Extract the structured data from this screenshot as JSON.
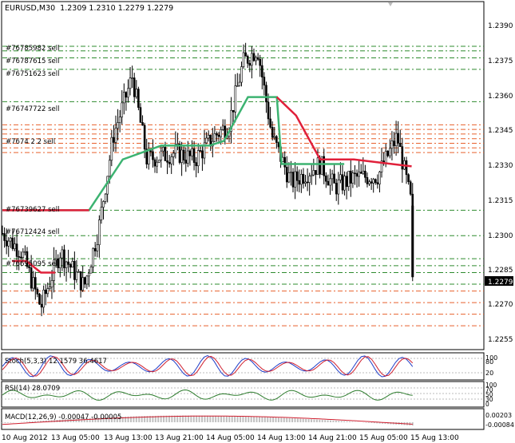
{
  "header": {
    "symbol_tf": "EURUSD,M30",
    "ohlc": "1.2309 1.2310 1.2279 1.2279"
  },
  "price_axis": {
    "ticks": [
      "1.2390",
      "1.2375",
      "1.2360",
      "1.2345",
      "1.2330",
      "1.2315",
      "1.2300",
      "1.2285",
      "1.2270",
      "1.2255"
    ],
    "current_price": "1.2279"
  },
  "time_axis": {
    "labels": [
      "10 Aug 2012",
      "13 Aug 05:00",
      "13 Aug 13:00",
      "13 Aug 21:00",
      "14 Aug 05:00",
      "14 Aug 13:00",
      "14 Aug 21:00",
      "15 Aug 05:00",
      "15 Aug 13:00"
    ]
  },
  "order_labels": {
    "o1": "#76785982 sell",
    "o2": "#76787615 sell",
    "o3": "#76751623 sell",
    "o4": "#76747722 sell",
    "o5": "#7674 2 2 sell",
    "o6": "#76739627 sell",
    "o7": "#76712424 sell",
    "o8": "#76695095 sell"
  },
  "indicators": {
    "stoch": {
      "label": "Stoch(5,3,3) 12.1579 36.4617",
      "scale_top": "100",
      "scale_mid": "80",
      "scale_low": "20"
    },
    "rsi": {
      "label": "RSI(14) 28.0709",
      "scale": [
        "100",
        "70",
        "50",
        "30",
        "0"
      ]
    },
    "macd": {
      "label": "MACD(12,26,9) -0.00047 -0.00005",
      "scale_top": "0.00203",
      "scale_bottom": "-0.00084"
    }
  },
  "colors": {
    "bull_line": "#3cb371",
    "bear_line": "#e0203a",
    "sell_levels": "#2e8b2e",
    "stop_levels": "#e8602c",
    "axis_text": "#000000"
  },
  "chart_data": {
    "type": "line",
    "title": "EURUSD,M30",
    "ylim": [
      1.2248,
      1.2398
    ],
    "trend_line_green": [
      [
        0.0,
        1.2308
      ],
      [
        0.18,
        1.2308
      ],
      [
        0.18,
        1.2308
      ],
      [
        0.25,
        1.233
      ],
      [
        0.33,
        1.2336
      ],
      [
        0.43,
        1.2336
      ],
      [
        0.46,
        1.2338
      ],
      [
        0.51,
        1.2357
      ],
      [
        0.57,
        1.2357
      ],
      [
        0.58,
        1.2328
      ],
      [
        0.71,
        1.2328
      ]
    ],
    "trend_line_red": [
      [
        0.0,
        1.2308
      ],
      [
        0.18,
        1.2308
      ]
    ],
    "red_resistance": [
      [
        0.57,
        1.2357
      ],
      [
        0.61,
        1.2349
      ],
      [
        0.66,
        1.233
      ],
      [
        0.73,
        1.233
      ],
      [
        0.85,
        1.2327
      ]
    ],
    "sell_levels": [
      1.2379,
      1.2377,
      1.2374,
      1.2369,
      1.2355,
      1.2308,
      1.2297,
      1.2287,
      1.2284,
      1.2281,
      1.2276
    ],
    "stop_levels": [
      1.2345,
      1.2343,
      1.2341,
      1.2339,
      1.2337,
      1.2335,
      1.2333,
      1.2273,
      1.2268,
      1.2263,
      1.2258
    ]
  }
}
